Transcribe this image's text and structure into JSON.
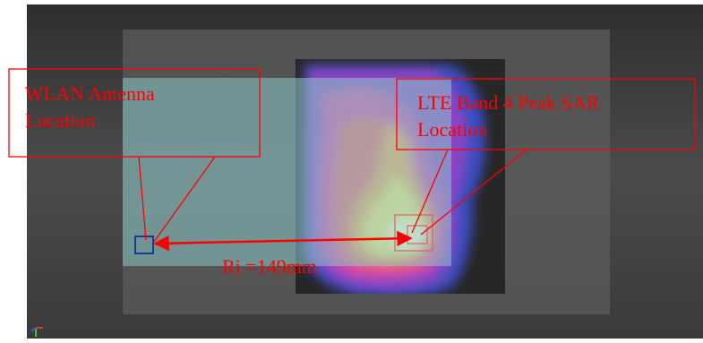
{
  "callouts": {
    "wlan": {
      "line1": "WLAN Antenna",
      "line2": "Location"
    },
    "lte": {
      "line1": "LTE Band 4 Peak SAR",
      "line2": "Location"
    }
  },
  "distance_label": "Ri =149mm",
  "colors": {
    "annotation_red": "#ff0000",
    "antenna_box": "#1a3a8a",
    "background": "#4a4a4a",
    "device_overlay": "#8cc8c8",
    "sar_scan_area": "#2b2b2b"
  },
  "icons": {
    "axis_gizmo": "axis-triad-icon"
  }
}
